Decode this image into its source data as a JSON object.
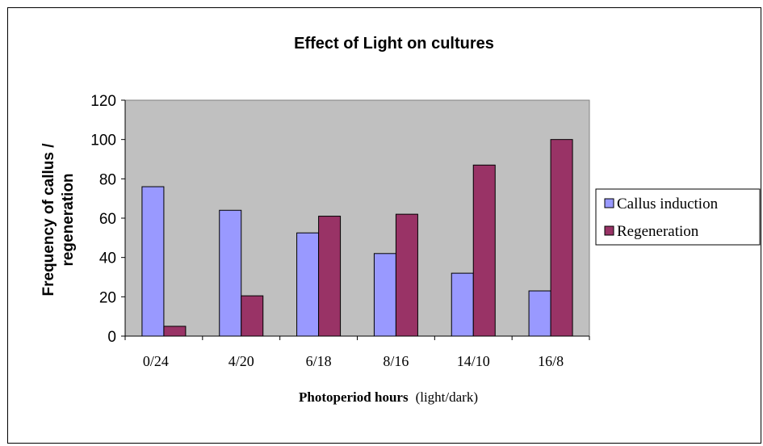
{
  "chart_data": {
    "type": "bar",
    "title": "Effect of Light on cultures",
    "ylabel_lines": [
      "Frequency of callus /",
      "regeneration"
    ],
    "xlabel_bold": "Photoperiod hours",
    "xlabel_rest": "(light/dark)",
    "categories": [
      "0/24",
      "4/20",
      "6/18",
      "8/16",
      "14/10",
      "16/8"
    ],
    "series": [
      {
        "name": "Callus induction",
        "values": [
          76,
          64,
          52.5,
          42,
          32,
          23
        ],
        "color": "#9999ff"
      },
      {
        "name": "Regeneration",
        "values": [
          5,
          20.5,
          61,
          62,
          87,
          100
        ],
        "color": "#993366"
      }
    ],
    "ylim": [
      0,
      120
    ],
    "yticks": [
      "0",
      "20",
      "40",
      "60",
      "80",
      "100",
      "120"
    ],
    "plot_background": "#c0c0c0",
    "grid": false,
    "legend_position": "right"
  }
}
